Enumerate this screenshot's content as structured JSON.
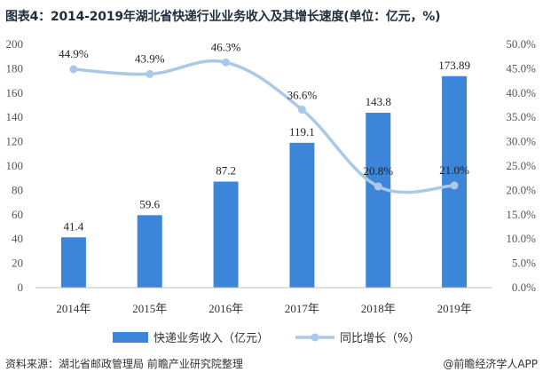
{
  "title": "图表4：2014-2019年湖北省快递行业业务收入及其增长速度(单位：亿元，%)",
  "footer": {
    "source": "资料来源：湖北省邮政管理局 前瞻产业研究院整理",
    "brand": "@前瞻经济学人APP"
  },
  "colors": {
    "bar": "#3d85d8",
    "line": "#a9c8ea"
  },
  "chart_data": {
    "type": "bar",
    "categories": [
      "2014年",
      "2015年",
      "2016年",
      "2017年",
      "2018年",
      "2019年"
    ],
    "series": [
      {
        "name": "快递业务收入（亿元）",
        "type": "bar",
        "axis": "left",
        "values": [
          41.4,
          59.6,
          87.2,
          119.1,
          143.8,
          173.89
        ],
        "labels": [
          "41.4",
          "59.6",
          "87.2",
          "119.1",
          "143.8",
          "173.89"
        ]
      },
      {
        "name": "同比增长（%）",
        "type": "line",
        "axis": "right",
        "values": [
          44.9,
          43.9,
          46.3,
          36.6,
          20.8,
          21.0
        ],
        "labels": [
          "44.9%",
          "43.9%",
          "46.3%",
          "36.6%",
          "20.8%",
          "21.0%"
        ]
      }
    ],
    "ylim": [
      0,
      200
    ],
    "y2lim": [
      0,
      50
    ],
    "yticks": [
      "0",
      "20",
      "40",
      "60",
      "80",
      "100",
      "120",
      "140",
      "160",
      "180",
      "200"
    ],
    "y2ticks": [
      "0.0%",
      "5.0%",
      "10.0%",
      "15.0%",
      "20.0%",
      "25.0%",
      "30.0%",
      "35.0%",
      "40.0%",
      "45.0%",
      "50.0%"
    ],
    "grid": false,
    "legend": "bottom"
  }
}
